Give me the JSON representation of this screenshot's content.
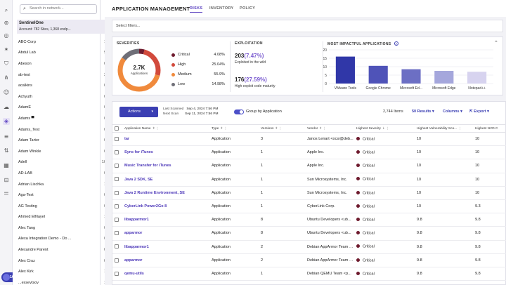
{
  "rail": {
    "icons": [
      "search-icon",
      "target-icon",
      "broadcast-icon",
      "star-icon",
      "shield-icon",
      "network-icon",
      "user-icon",
      "cloud-icon",
      "ranger-icon",
      "list-icon",
      "graph-icon",
      "grid-icon",
      "server-icon",
      "equalizer-icon"
    ],
    "badge_count": "109"
  },
  "accounts": {
    "search_placeholder": "Search in network...",
    "header_title": "SentinelOne",
    "header_sub": "Account: 782 Sites, 1,368 endp...",
    "items": [
      {
        "name": "ABC-Corp",
        "count": "1"
      },
      {
        "name": "Abdul Lab",
        "count": "9"
      },
      {
        "name": "Abeson",
        "count": "0"
      },
      {
        "name": "ab-test",
        "count": "3"
      },
      {
        "name": "acalkins",
        "count": "0"
      },
      {
        "name": "Achyuth",
        "count": "0"
      },
      {
        "name": "AdamE",
        "count": "0"
      },
      {
        "name": "Adams ▀",
        "count": "0"
      },
      {
        "name": "Adams_Test",
        "count": "0"
      },
      {
        "name": "Adam Tarter",
        "count": "0"
      },
      {
        "name": "Adam Winkle",
        "count": "0"
      },
      {
        "name": "Adell",
        "count": "10"
      },
      {
        "name": "AD-LAB",
        "count": "0"
      },
      {
        "name": "Adrian Lischka",
        "count": "1"
      },
      {
        "name": "Aga-Test",
        "count": "0"
      },
      {
        "name": "AG Testing",
        "count": "0"
      },
      {
        "name": "Ahmed ElNayel",
        "count": "1"
      },
      {
        "name": "Alec Tang",
        "count": "0"
      },
      {
        "name": "Alexa Integration Demo - Do ...",
        "count": "0"
      },
      {
        "name": "Alexandre Parent",
        "count": "0"
      },
      {
        "name": "Alex Cruz",
        "count": "0"
      },
      {
        "name": "Alex Kirk",
        "count": "1"
      },
      {
        "name": "...exsevtsov",
        "count": "1"
      }
    ]
  },
  "header": {
    "title": "APPLICATION MANAGEMENT",
    "tabs": [
      "RISKS",
      "INVENTORY",
      "POLICY"
    ]
  },
  "filters": {
    "placeholder": "Select filters..."
  },
  "severities": {
    "heading": "SEVERITIES",
    "total": "2.7K",
    "total_label": "Applications",
    "items": [
      {
        "name": "Critical",
        "pct": "4.08%",
        "color": "#6e1b2e",
        "value": 4.08
      },
      {
        "name": "High",
        "pct": "25.04%",
        "color": "#d24a3c",
        "value": 25.04
      },
      {
        "name": "Medium",
        "pct": "55.9%",
        "color": "#f08a3c",
        "value": 55.9
      },
      {
        "name": "Low",
        "pct": "14.98%",
        "color": "#6f6f78",
        "value": 14.98
      }
    ]
  },
  "exploitation": {
    "heading": "EXPLOITATION",
    "a_value": "203",
    "a_pct": "(7.47%)",
    "a_label": "Exploited in the wild",
    "b_value": "176",
    "b_pct": "(27.59%)",
    "b_label": "High exploit code maturity"
  },
  "chart_data": {
    "type": "bar",
    "title": "MOST IMPACTFUL APPLICATIONS",
    "categories": [
      "VMware Tools",
      "Google Chrome",
      "Microsoft Ed...",
      "Microsoft Edge",
      "Notepad++"
    ],
    "values": [
      16,
      10.5,
      8.5,
      7.5,
      7
    ],
    "colors": [
      "#3037a8",
      "#4f53b8",
      "#6c6fc4",
      "#a5a7dc",
      "#d7d3ef"
    ],
    "ylim": [
      0,
      20
    ],
    "yticks": [
      0,
      5,
      10,
      15,
      20
    ],
    "grid": true
  },
  "toolbar": {
    "actions_label": "Actions",
    "last_scanned_label": "Last Scanned",
    "last_scanned_value": "Sep 4, 2024 7:56 PM",
    "next_scan_label": "Next Scan",
    "next_scan_value": "Sep 11, 2024 7:56 PM",
    "group_label": "Group by Application",
    "items_count": "2,744 Items",
    "results_label": "50 Results",
    "columns_label": "Columns",
    "export_label": "Export"
  },
  "table": {
    "headers": [
      "Application Name",
      "Type",
      "Versions",
      "Vendor",
      "Highest Severity",
      "Highest Vulnerability Sco...",
      "Highest NVD C"
    ],
    "rows": [
      {
        "name": "tar",
        "type": "Application",
        "versions": "3",
        "vendor": "Janos Lenart &lt;ocsi@deb...",
        "severity": "Critical",
        "score": "10",
        "nvd": "10"
      },
      {
        "name": "Sync for iTunes",
        "type": "Application",
        "versions": "1",
        "vendor": "Apple Inc.",
        "severity": "Critical",
        "score": "10",
        "nvd": "10"
      },
      {
        "name": "Music Transfer for iTunes",
        "type": "Application",
        "versions": "1",
        "vendor": "Apple Inc.",
        "severity": "Critical",
        "score": "10",
        "nvd": "10"
      },
      {
        "name": "Java 2 SDK, SE",
        "type": "Application",
        "versions": "1",
        "vendor": "Sun Microsystems, Inc.",
        "severity": "Critical",
        "score": "10",
        "nvd": "10"
      },
      {
        "name": "Java 2 Runtime Environment, SE",
        "type": "Application",
        "versions": "1",
        "vendor": "Sun Microsystems, Inc.",
        "severity": "Critical",
        "score": "10",
        "nvd": "10"
      },
      {
        "name": "CyberLink Power2Go 8",
        "type": "Application",
        "versions": "1",
        "vendor": "CyberLink Corp.",
        "severity": "Critical",
        "score": "10",
        "nvd": "9.3"
      },
      {
        "name": "libapparmor1",
        "type": "Application",
        "versions": "8",
        "vendor": "Ubuntu Developers &lt;ub...",
        "severity": "Critical",
        "score": "9.8",
        "nvd": "9.8"
      },
      {
        "name": "apparmor",
        "type": "Application",
        "versions": "8",
        "vendor": "Ubuntu Developers &lt;ub...",
        "severity": "Critical",
        "score": "9.8",
        "nvd": "9.8"
      },
      {
        "name": "libapparmor1",
        "type": "Application",
        "versions": "2",
        "vendor": "Debian AppArmor Team &...",
        "severity": "Critical",
        "score": "9.8",
        "nvd": "9.8"
      },
      {
        "name": "apparmor",
        "type": "Application",
        "versions": "2",
        "vendor": "Debian AppArmor Team &...",
        "severity": "Critical",
        "score": "9.8",
        "nvd": "9.8"
      },
      {
        "name": "qemu-utils",
        "type": "Application",
        "versions": "1",
        "vendor": "Debian QEMU Team &lt;p...",
        "severity": "Critical",
        "score": "9.8",
        "nvd": "9.8"
      }
    ]
  }
}
